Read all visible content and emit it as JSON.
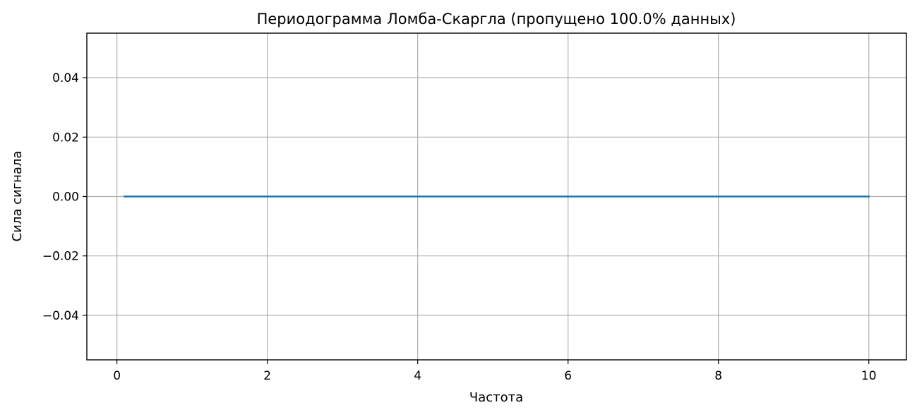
{
  "chart_data": {
    "type": "line",
    "title": "Периодограмма Ломба-Скаргла (пропущено 100.0% данных)",
    "xlabel": "Частота",
    "ylabel": "Сила сигнала",
    "xlim": [
      -0.4,
      10.5
    ],
    "ylim": [
      -0.055,
      0.055
    ],
    "xticks": [
      0,
      2,
      4,
      6,
      8,
      10
    ],
    "xtick_labels": [
      "0",
      "2",
      "4",
      "6",
      "8",
      "10"
    ],
    "yticks": [
      0.04,
      0.02,
      0.0,
      -0.02,
      -0.04
    ],
    "ytick_labels": [
      "0.04",
      "0.02",
      "0.00",
      "−0.02",
      "−0.04"
    ],
    "grid": true,
    "series": [
      {
        "color": "#1f77b4",
        "x": [
          0.1,
          1,
          2,
          3,
          4,
          5,
          6,
          7,
          8,
          9,
          10
        ],
        "y": [
          0,
          0,
          0,
          0,
          0,
          0,
          0,
          0,
          0,
          0,
          0
        ]
      }
    ]
  }
}
